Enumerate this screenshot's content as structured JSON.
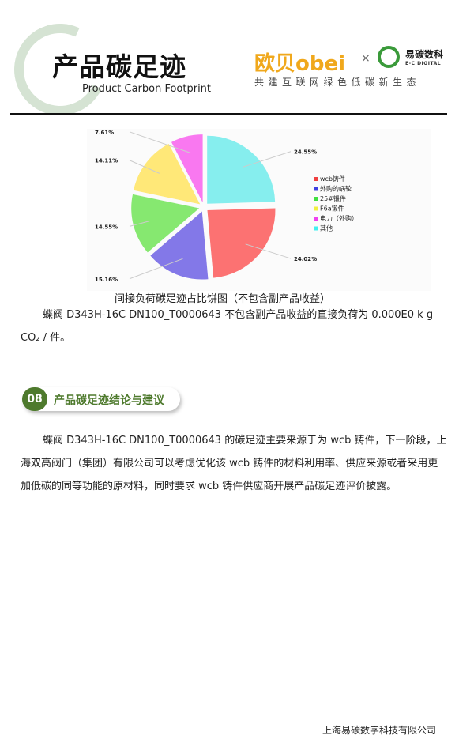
{
  "header": {
    "title": "产品碳足迹",
    "subtitle": "Product Carbon Footprint",
    "brand_primary": "欧贝obei",
    "separator": "×",
    "brand_secondary": "易碳数科",
    "brand_secondary_en": "E-C DIGITAL",
    "slogan": "共建互联网绿色低碳新生态"
  },
  "chart_data": {
    "type": "pie",
    "title": "间接负荷碳足迹占比饼图（不包含副产品收益）",
    "categories": [
      "其他",
      "wcb铸件",
      "外购的蜗轮",
      "25#锻件",
      "F6a锻件",
      "电力（外购）"
    ],
    "values": [
      24.55,
      24.02,
      15.16,
      14.55,
      14.11,
      7.61
    ],
    "labels": [
      "24.55%",
      "24.02%",
      "15.16%",
      "14.55%",
      "14.11%",
      "7.61%"
    ],
    "colors": [
      "#86eeee",
      "#fc7272",
      "#8378e8",
      "#86e870",
      "#ffe878",
      "#f978f0"
    ],
    "legend": [
      {
        "name": "wcb铸件",
        "color": "#f04040"
      },
      {
        "name": "外购的蜗轮",
        "color": "#4040e0"
      },
      {
        "name": "25#锻件",
        "color": "#40e040"
      },
      {
        "name": "F6a锻件",
        "color": "#f0f040"
      },
      {
        "name": "电力（外购）",
        "color": "#f040f0"
      },
      {
        "name": "其他",
        "color": "#40f0f0"
      }
    ],
    "legend_position": "right"
  },
  "body": {
    "para1": "蝶阀  D343H-16C  DN100_T0000643 不包含副产品收益的直接负荷为 0.000E0  k g  CO₂ / 件。",
    "section_number": "08",
    "section_title": "产品碳足迹结论与建议",
    "para2": "蝶阀  D343H-16C  DN100_T0000643 的碳足迹主要来源于为 wcb 铸件，下一阶段，上海双高阀门（集团）有限公司可以考虑优化该 wcb 铸件的材料利用率、供应来源或者采用更加低碳的同等功能的原材料，同时要求 wcb 铸件供应商开展产品碳足迹评价披露。"
  },
  "footer": {
    "company": "上海易碳数字科技有限公司"
  }
}
